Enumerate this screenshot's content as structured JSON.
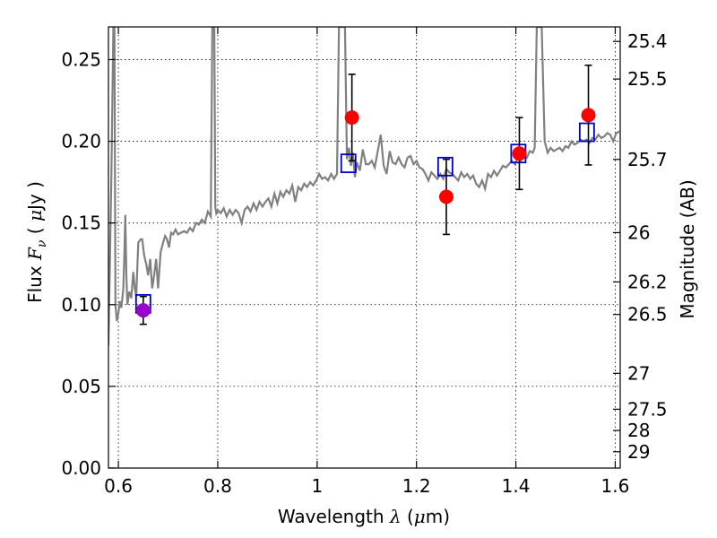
{
  "chart_data": {
    "type": "scatter",
    "xlabel_prefix": "Wavelength",
    "xlabel_symbol": "λ",
    "xlabel_unit_open": "(",
    "xlabel_unit_mu": "μ",
    "xlabel_unit_rest": "m)",
    "ylabel_prefix": "Flux",
    "ylabel_symbol": "F",
    "ylabel_subscript": "ν",
    "ylabel_unit_open": "(",
    "ylabel_unit_mu": "μ",
    "ylabel_unit_rest": "Jy )",
    "y2label": "Magnitude (AB)",
    "xlim": [
      0.58,
      1.61
    ],
    "ylim": [
      0.0,
      0.27
    ],
    "grid": true,
    "x_ticks": [
      0.6,
      0.8,
      1.0,
      1.2,
      1.4,
      1.6
    ],
    "x_tick_labels": [
      "0.6",
      "0.8",
      "1",
      "1.2",
      "1.4",
      "1.6"
    ],
    "y_ticks": [
      0.0,
      0.05,
      0.1,
      0.15,
      0.2,
      0.25
    ],
    "y_tick_labels": [
      "0.00",
      "0.05",
      "0.10",
      "0.15",
      "0.20",
      "0.25"
    ],
    "y2_ticks": [
      {
        "flux": 0.2611,
        "label": "25.4"
      },
      {
        "flux": 0.2381,
        "label": "25.5"
      },
      {
        "flux": 0.1889,
        "label": "25.7"
      },
      {
        "flux": 0.1441,
        "label": "26"
      },
      {
        "flux": 0.1139,
        "label": "26.2"
      },
      {
        "flux": 0.094,
        "label": "26.5"
      },
      {
        "flux": 0.058,
        "label": "27"
      },
      {
        "flux": 0.036,
        "label": "27.5"
      },
      {
        "flux": 0.023,
        "label": "28"
      },
      {
        "flux": 0.01,
        "label": "29"
      }
    ],
    "series": [
      {
        "name": "model_spectrum",
        "kind": "line",
        "color": "#808080",
        "x": [
          0.58,
          0.586,
          0.59,
          0.592,
          0.594,
          0.597,
          0.6,
          0.603,
          0.606,
          0.61,
          0.612,
          0.614,
          0.616,
          0.618,
          0.622,
          0.626,
          0.63,
          0.633,
          0.636,
          0.64,
          0.645,
          0.648,
          0.652,
          0.656,
          0.66,
          0.664,
          0.668,
          0.672,
          0.676,
          0.68,
          0.685,
          0.69,
          0.694,
          0.698,
          0.702,
          0.706,
          0.71,
          0.715,
          0.72,
          0.726,
          0.732,
          0.738,
          0.744,
          0.75,
          0.756,
          0.762,
          0.768,
          0.774,
          0.78,
          0.786,
          0.789,
          0.791,
          0.793,
          0.795,
          0.797,
          0.8,
          0.806,
          0.812,
          0.818,
          0.824,
          0.83,
          0.836,
          0.842,
          0.848,
          0.854,
          0.86,
          0.866,
          0.872,
          0.878,
          0.884,
          0.89,
          0.896,
          0.902,
          0.908,
          0.914,
          0.92,
          0.926,
          0.932,
          0.938,
          0.944,
          0.95,
          0.956,
          0.962,
          0.968,
          0.974,
          0.98,
          0.986,
          0.992,
          0.998,
          1.004,
          1.01,
          1.016,
          1.022,
          1.028,
          1.034,
          1.04,
          1.044,
          1.047,
          1.05,
          1.053,
          1.056,
          1.06,
          1.064,
          1.068,
          1.072,
          1.076,
          1.08,
          1.086,
          1.092,
          1.098,
          1.104,
          1.11,
          1.116,
          1.122,
          1.128,
          1.134,
          1.14,
          1.146,
          1.152,
          1.158,
          1.164,
          1.17,
          1.176,
          1.182,
          1.188,
          1.194,
          1.2,
          1.206,
          1.212,
          1.218,
          1.224,
          1.23,
          1.236,
          1.242,
          1.248,
          1.254,
          1.26,
          1.266,
          1.272,
          1.278,
          1.284,
          1.29,
          1.296,
          1.302,
          1.308,
          1.314,
          1.32,
          1.326,
          1.332,
          1.338,
          1.344,
          1.35,
          1.356,
          1.362,
          1.368,
          1.374,
          1.38,
          1.386,
          1.392,
          1.398,
          1.404,
          1.41,
          1.416,
          1.422,
          1.428,
          1.434,
          1.438,
          1.442,
          1.445,
          1.448,
          1.452,
          1.458,
          1.464,
          1.47,
          1.476,
          1.482,
          1.488,
          1.494,
          1.5,
          1.506,
          1.512,
          1.518,
          1.524,
          1.53,
          1.536,
          1.542,
          1.548,
          1.554,
          1.56,
          1.566,
          1.572,
          1.578,
          1.584,
          1.59,
          1.596,
          1.602,
          1.608
        ],
        "y": [
          0.075,
          0.18,
          0.27,
          0.27,
          0.1,
          0.09,
          0.095,
          0.102,
          0.098,
          0.11,
          0.13,
          0.155,
          0.118,
          0.1,
          0.108,
          0.104,
          0.12,
          0.11,
          0.105,
          0.138,
          0.14,
          0.14,
          0.13,
          0.125,
          0.118,
          0.128,
          0.11,
          0.118,
          0.128,
          0.11,
          0.132,
          0.138,
          0.142,
          0.14,
          0.135,
          0.144,
          0.143,
          0.146,
          0.143,
          0.144,
          0.145,
          0.144,
          0.147,
          0.145,
          0.15,
          0.149,
          0.152,
          0.15,
          0.157,
          0.154,
          0.27,
          0.27,
          0.27,
          0.16,
          0.156,
          0.158,
          0.156,
          0.159,
          0.154,
          0.158,
          0.155,
          0.158,
          0.156,
          0.15,
          0.158,
          0.16,
          0.157,
          0.162,
          0.158,
          0.163,
          0.16,
          0.163,
          0.165,
          0.16,
          0.168,
          0.162,
          0.169,
          0.166,
          0.17,
          0.168,
          0.173,
          0.163,
          0.172,
          0.17,
          0.174,
          0.172,
          0.175,
          0.173,
          0.176,
          0.18,
          0.177,
          0.178,
          0.176,
          0.18,
          0.177,
          0.18,
          0.27,
          0.27,
          0.27,
          0.27,
          0.27,
          0.189,
          0.196,
          0.185,
          0.193,
          0.178,
          0.187,
          0.182,
          0.195,
          0.186,
          0.186,
          0.188,
          0.184,
          0.194,
          0.204,
          0.185,
          0.18,
          0.194,
          0.187,
          0.186,
          0.19,
          0.186,
          0.184,
          0.19,
          0.191,
          0.186,
          0.188,
          0.184,
          0.183,
          0.18,
          0.176,
          0.181,
          0.179,
          0.177,
          0.18,
          0.177,
          0.183,
          0.181,
          0.18,
          0.178,
          0.176,
          0.181,
          0.178,
          0.18,
          0.177,
          0.179,
          0.174,
          0.172,
          0.176,
          0.171,
          0.18,
          0.178,
          0.182,
          0.179,
          0.182,
          0.185,
          0.184,
          0.186,
          0.188,
          0.186,
          0.19,
          0.188,
          0.192,
          0.19,
          0.194,
          0.193,
          0.196,
          0.27,
          0.27,
          0.27,
          0.27,
          0.2,
          0.193,
          0.196,
          0.194,
          0.195,
          0.196,
          0.194,
          0.197,
          0.196,
          0.2,
          0.198,
          0.199,
          0.201,
          0.2,
          0.201,
          0.199,
          0.202,
          0.201,
          0.204,
          0.202,
          0.203,
          0.205,
          0.204,
          0.2,
          0.205,
          0.206
        ]
      },
      {
        "name": "model_band_flux",
        "kind": "open-square",
        "color": "#0000cc",
        "x": [
          0.65,
          1.063,
          1.258,
          1.405,
          1.543
        ],
        "y": [
          0.1005,
          0.1865,
          0.1845,
          0.1925,
          0.2055
        ]
      },
      {
        "name": "observed_photometry",
        "kind": "filled-circle-errorbar",
        "color": "#ff0000",
        "x": [
          1.07,
          1.26,
          1.407,
          1.546
        ],
        "y": [
          0.2145,
          0.166,
          0.1925,
          0.216
        ],
        "yerr": [
          0.0265,
          0.023,
          0.022,
          0.0305
        ]
      },
      {
        "name": "observed_photometry_visible",
        "kind": "filled-circle-errorbar",
        "color": "#9900cc",
        "x": [
          0.65
        ],
        "y": [
          0.0965
        ],
        "yerr": [
          0.0085
        ]
      }
    ]
  }
}
